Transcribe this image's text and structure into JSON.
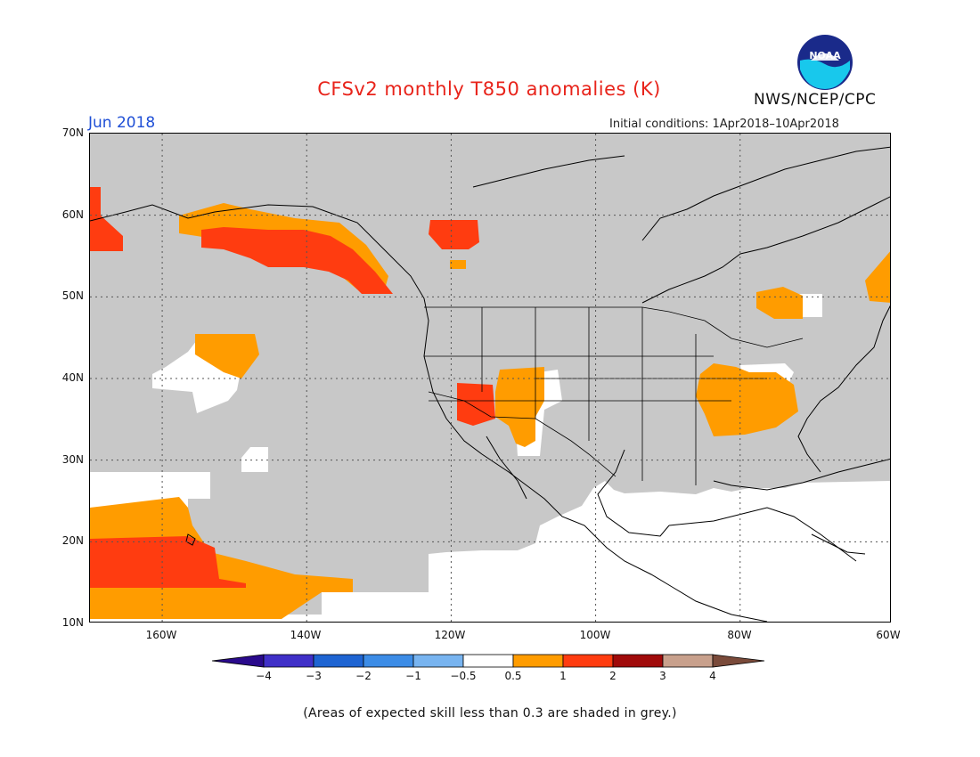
{
  "header": {
    "title": "CFSv2 monthly T850 anomalies (K)",
    "valid_month": "Jun 2018",
    "initial_conditions": "Initial conditions: 1Apr2018–10Apr2018",
    "agency": "NWS/NCEP/CPC",
    "logo_text": "NOAA"
  },
  "map": {
    "lat_labels": [
      "70N",
      "60N",
      "50N",
      "40N",
      "30N",
      "20N",
      "10N"
    ],
    "lon_labels": [
      "160W",
      "140W",
      "120W",
      "100W",
      "80W",
      "60W"
    ],
    "extent": {
      "lon_min": -171,
      "lon_max": -60,
      "lat_min": 10,
      "lat_max": 70
    },
    "colors": {
      "no_skill": "#c8c8c8",
      "neutral": "#ffffff",
      "warm_0_5_to_1": "#ff9c00",
      "warm_1_to_2": "#ff3c10",
      "coast": "#000000"
    }
  },
  "legend": {
    "bins": [
      {
        "range": "< -4",
        "color": "#2a0a8c"
      },
      {
        "range": "-4 to -3",
        "color": "#4030c8"
      },
      {
        "range": "-3 to -2",
        "color": "#1e64d2"
      },
      {
        "range": "-2 to -1",
        "color": "#3c8ce6"
      },
      {
        "range": "-1 to -0.5",
        "color": "#78b4f0"
      },
      {
        "range": "-0.5 to 0.5",
        "color": "#ffffff"
      },
      {
        "range": "0.5 to 1",
        "color": "#ff9c00"
      },
      {
        "range": "1 to 2",
        "color": "#ff3c10"
      },
      {
        "range": "2 to 3",
        "color": "#a00a0a"
      },
      {
        "range": "3 to 4",
        "color": "#c8a08c"
      },
      {
        "range": "> 4",
        "color": "#7a4a3a"
      }
    ],
    "tick_labels": [
      "−4",
      "−3",
      "−2",
      "−1",
      "−0.5",
      "0.5",
      "1",
      "2",
      "3",
      "4"
    ]
  },
  "footnote": "(Areas of expected skill less than 0.3 are shaded in grey.)"
}
